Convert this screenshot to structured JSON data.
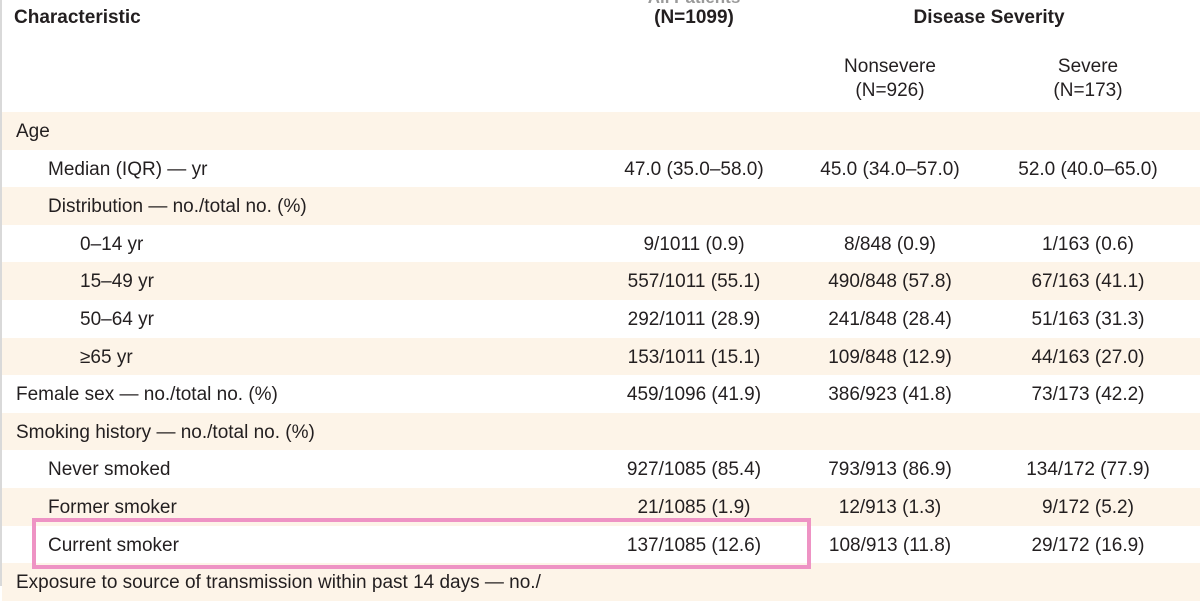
{
  "header": {
    "characteristic": "Characteristic",
    "all_patients_partial": "All Patients",
    "all_patients_n": "(N=1099)",
    "disease_severity": "Disease Severity",
    "nonsevere": "Nonsevere",
    "nonsevere_n": "(N=926)",
    "severe": "Severe",
    "severe_n": "(N=173)"
  },
  "rows": [
    {
      "label": "Age",
      "all": "",
      "nonsevere": "",
      "severe": ""
    },
    {
      "label": "Median (IQR) — yr",
      "all": "47.0 (35.0–58.0)",
      "nonsevere": "45.0 (34.0–57.0)",
      "severe": "52.0 (40.0–65.0)"
    },
    {
      "label": "Distribution — no./total no. (%)",
      "all": "",
      "nonsevere": "",
      "severe": ""
    },
    {
      "label": "0–14 yr",
      "all": "9/1011 (0.9)",
      "nonsevere": "8/848 (0.9)",
      "severe": "1/163 (0.6)"
    },
    {
      "label": "15–49 yr",
      "all": "557/1011 (55.1)",
      "nonsevere": "490/848 (57.8)",
      "severe": "67/163 (41.1)"
    },
    {
      "label": "50–64 yr",
      "all": "292/1011 (28.9)",
      "nonsevere": "241/848 (28.4)",
      "severe": "51/163 (31.3)"
    },
    {
      "label": "≥65 yr",
      "all": "153/1011 (15.1)",
      "nonsevere": "109/848 (12.9)",
      "severe": "44/163 (27.0)"
    },
    {
      "label": "Female sex — no./total no. (%)",
      "all": "459/1096 (41.9)",
      "nonsevere": "386/923 (41.8)",
      "severe": "73/173 (42.2)"
    },
    {
      "label": "Smoking history — no./total no. (%)",
      "all": "",
      "nonsevere": "",
      "severe": ""
    },
    {
      "label": "Never smoked",
      "all": "927/1085 (85.4)",
      "nonsevere": "793/913 (86.9)",
      "severe": "134/172 (77.9)"
    },
    {
      "label": "Former smoker",
      "all": "21/1085 (1.9)",
      "nonsevere": "12/913 (1.3)",
      "severe": "9/172 (5.2)"
    },
    {
      "label": "Current smoker",
      "all": "137/1085 (12.6)",
      "nonsevere": "108/913 (11.8)",
      "severe": "29/172 (16.9)"
    },
    {
      "label": "Exposure to source of transmission within past 14 days — no./",
      "all": "",
      "nonsevere": "",
      "severe": ""
    }
  ],
  "colors": {
    "row_shade": "#fdf4e8",
    "highlight_border": "#ee93c4"
  }
}
